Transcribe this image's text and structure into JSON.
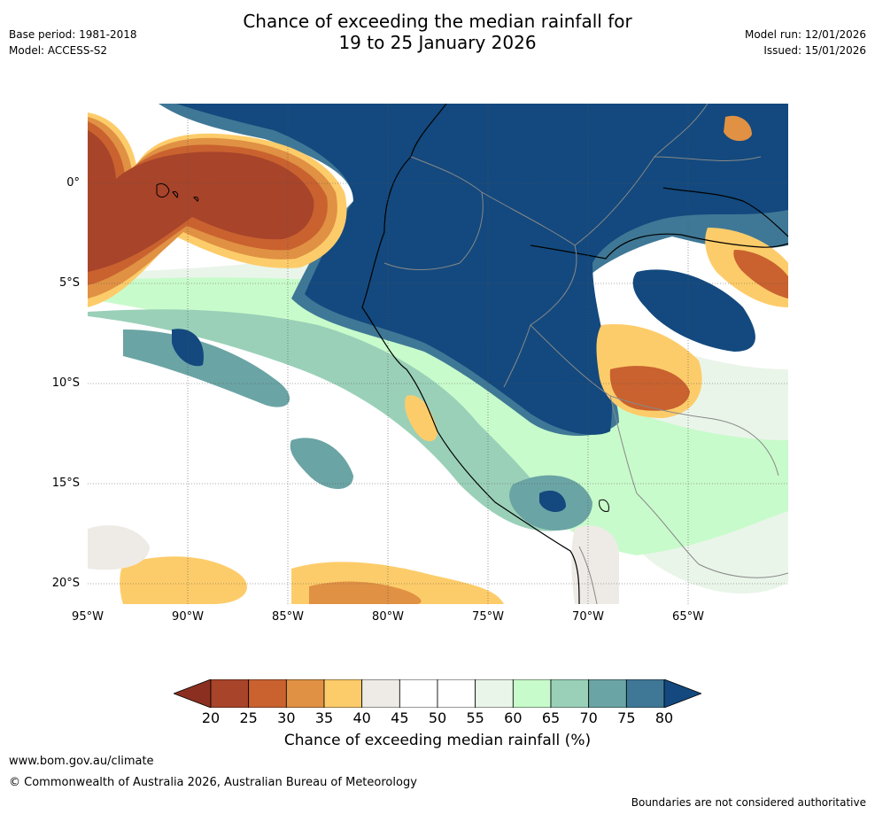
{
  "title": {
    "line1": "Chance of exceeding the median rainfall for",
    "line2": "19 to 25 January 2026"
  },
  "meta": {
    "base_period": "Base period: 1981-2018",
    "model": "Model: ACCESS-S2",
    "model_run": "Model run: 12/01/2026",
    "issued": "Issued: 15/01/2026"
  },
  "map": {
    "lat_labels": [
      "0°",
      "5°S",
      "10°S",
      "15°S",
      "20°S"
    ],
    "lat_values": [
      0,
      -5,
      -10,
      -15,
      -20
    ],
    "lon_labels": [
      "95°W",
      "90°W",
      "85°W",
      "80°W",
      "75°W",
      "70°W",
      "65°W"
    ],
    "lon_values": [
      -95,
      -90,
      -85,
      -80,
      -75,
      -70,
      -65
    ],
    "lon_range": [
      -95,
      -60
    ],
    "lat_range": [
      -21,
      4
    ]
  },
  "colorbar": {
    "labels": [
      "20",
      "25",
      "30",
      "35",
      "40",
      "45",
      "50",
      "55",
      "60",
      "65",
      "70",
      "75",
      "80"
    ],
    "colors": [
      "#a8442a",
      "#c9622f",
      "#e09143",
      "#fdcc6a",
      "#eeebe6",
      "#ffffff",
      "#ffffff",
      "#eaf5ea",
      "#c8fbcb",
      "#9ad0b8",
      "#6ba4a4",
      "#3f7896"
    ],
    "under_color": "#8b3020",
    "over_color": "#13497e",
    "title": "Chance of exceeding median rainfall (%)"
  },
  "footer": {
    "url": "www.bom.gov.au/climate",
    "copyright": "© Commonwealth of Australia 2026, Australian Bureau of Meteorology",
    "disclaimer": "Boundaries are not considered authoritative"
  }
}
